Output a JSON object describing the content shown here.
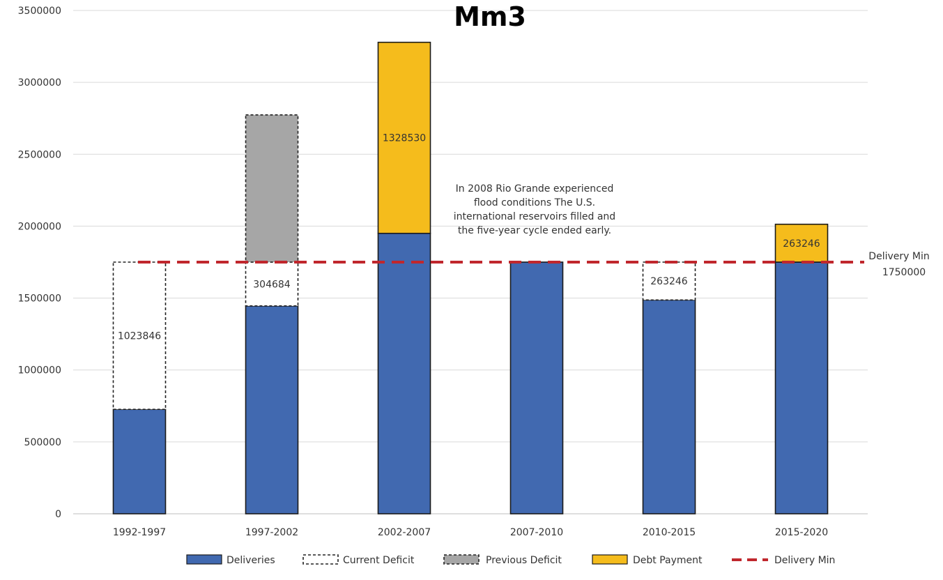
{
  "chart_data": {
    "type": "bar",
    "stacked": true,
    "title": "Mm3",
    "categories": [
      "1992-1997",
      "1997-2002",
      "2002-2007",
      "2007-2010",
      "2010-2015",
      "2015-2020"
    ],
    "yticks": [
      "0",
      "500000",
      "1000000",
      "1500000",
      "2000000",
      "2500000",
      "3000000",
      "3500000"
    ],
    "ylim": [
      0,
      3500000
    ],
    "grid": true,
    "legend_position": "bottom",
    "series": [
      {
        "name": "Deliveries",
        "values": [
          726154,
          1445316,
          1950000,
          1750000,
          1486754,
          1750000
        ],
        "color": "#4169b0"
      },
      {
        "name": "Current Deficit",
        "values": [
          1023846,
          304684,
          0,
          0,
          263246,
          0
        ],
        "color": "#ffffff",
        "labels": [
          "1023846",
          "304684",
          "",
          "",
          "263246",
          ""
        ]
      },
      {
        "name": "Previous Deficit",
        "values": [
          0,
          1023846,
          0,
          0,
          0,
          0
        ],
        "color": "#a6a6a6"
      },
      {
        "name": "Debt Payment",
        "values": [
          0,
          0,
          1328530,
          0,
          0,
          263246
        ],
        "color": "#f5bc1c",
        "labels": [
          "",
          "",
          "1328530",
          "",
          "",
          "263246"
        ]
      }
    ],
    "reference_line": {
      "name": "Delivery Min",
      "value": 1750000,
      "label_line1": "Delivery Min",
      "label_line2": "1750000",
      "color": "#c0272d"
    },
    "annotation": [
      "In 2008 Rio Grande experienced",
      "flood conditions The U.S.",
      "international reservoirs filled and",
      "the five-year cycle ended early."
    ]
  }
}
